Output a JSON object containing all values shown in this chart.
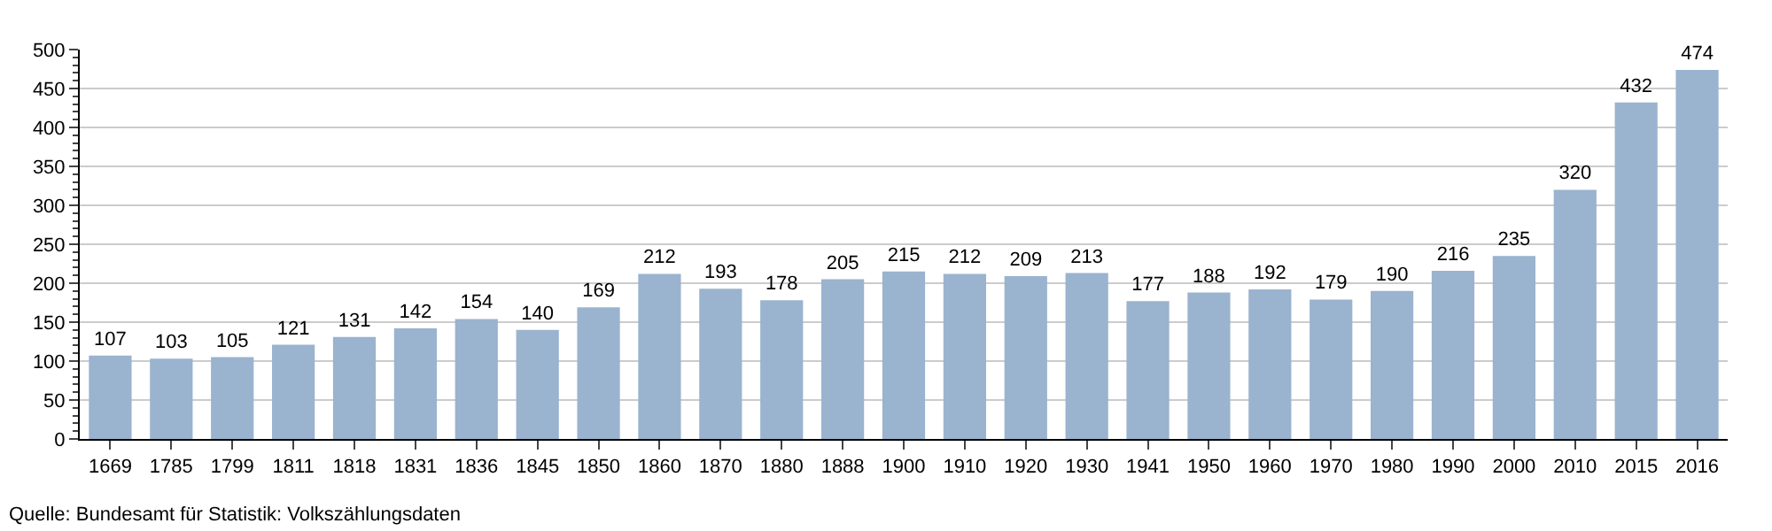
{
  "chart_data": {
    "type": "bar",
    "categories": [
      "1669",
      "1785",
      "1799",
      "1811",
      "1818",
      "1831",
      "1836",
      "1845",
      "1850",
      "1860",
      "1870",
      "1880",
      "1888",
      "1900",
      "1910",
      "1920",
      "1930",
      "1941",
      "1950",
      "1960",
      "1970",
      "1980",
      "1990",
      "2000",
      "2010",
      "2015",
      "2016"
    ],
    "values": [
      107,
      103,
      105,
      121,
      131,
      142,
      154,
      140,
      169,
      212,
      193,
      178,
      205,
      215,
      212,
      209,
      213,
      177,
      188,
      192,
      179,
      190,
      216,
      235,
      320,
      432,
      474
    ],
    "color": "#9ab3cf",
    "ylim": [
      0,
      500
    ],
    "yticks": [
      0,
      50,
      100,
      150,
      200,
      250,
      300,
      350,
      400,
      450,
      500
    ],
    "grid": "y",
    "data_labels": true,
    "annotations": [
      "Quelle: Bundesamt für Statistik: Volkszählungsdaten"
    ]
  }
}
